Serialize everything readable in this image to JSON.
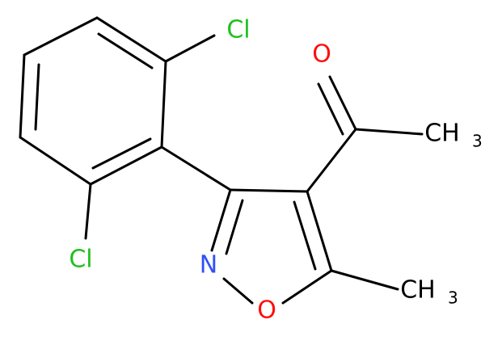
{
  "atoms": [
    {
      "label": "Cl"
    },
    {
      "label": "Cl"
    },
    {
      "label": "O"
    },
    {
      "label": "CH",
      "subscript": "3"
    },
    {
      "label": "N"
    },
    {
      "label": "O"
    },
    {
      "label": "CH",
      "subscript": "3"
    }
  ]
}
